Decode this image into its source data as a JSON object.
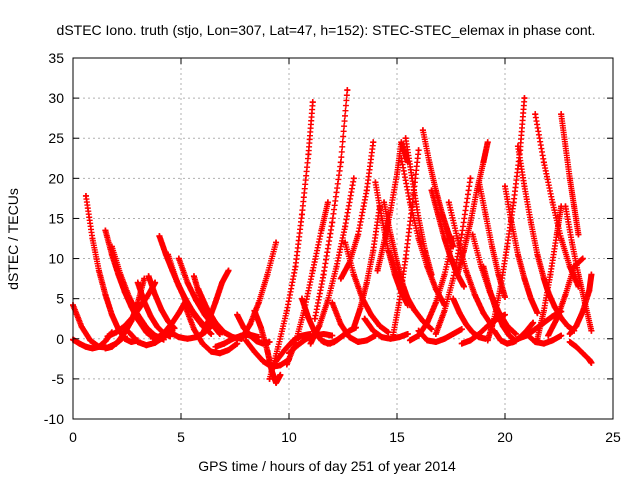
{
  "chart_data": {
    "type": "scatter",
    "title": "dSTEC Iono. truth (stjo, Lon=307, Lat=47, h=152): STEC-STEC_elemax in phase cont.",
    "xlabel": "GPS time / hours of day 251 of year 2014",
    "ylabel": "dSTEC  / TECUs",
    "xlim": [
      0,
      25
    ],
    "ylim": [
      -10,
      35
    ],
    "xticks": [
      0,
      5,
      10,
      15,
      20,
      25
    ],
    "yticks": [
      -10,
      -5,
      0,
      5,
      10,
      15,
      20,
      25,
      30,
      35
    ],
    "grid": true,
    "legend": "none",
    "marker": "+",
    "color": "#ff0000",
    "series": [
      {
        "x": [
          0.0,
          0.4,
          0.8,
          1.2,
          1.6,
          2.0,
          2.4
        ],
        "y": [
          4.2,
          1.5,
          -0.2,
          -1.0,
          -1.1,
          -0.6,
          0.3
        ]
      },
      {
        "x": [
          0.0,
          0.3,
          0.6,
          0.9,
          1.2,
          1.5,
          1.8
        ],
        "y": [
          -0.1,
          -0.6,
          -1.0,
          -1.2,
          -1.0,
          -0.3,
          0.8
        ]
      },
      {
        "x": [
          0.6,
          0.9,
          1.2,
          1.5,
          1.8,
          2.1,
          2.4,
          2.7,
          3.0
        ],
        "y": [
          17.8,
          12.5,
          8.5,
          5.5,
          3.0,
          1.2,
          0.0,
          -0.4,
          -0.2
        ]
      },
      {
        "x": [
          1.5,
          1.8,
          2.1,
          2.4,
          2.7,
          3.0,
          3.3
        ],
        "y": [
          -1.2,
          -1.0,
          -0.3,
          0.8,
          2.2,
          4.5,
          7.5
        ]
      },
      {
        "x": [
          1.5,
          1.8,
          2.1,
          2.4,
          2.7,
          3.0,
          3.4,
          3.8
        ],
        "y": [
          13.5,
          10.5,
          8.0,
          5.8,
          4.0,
          2.4,
          0.8,
          0.0
        ]
      },
      {
        "x": [
          1.8,
          2.2,
          2.6,
          3.0,
          3.4,
          3.8,
          4.2
        ],
        "y": [
          11.5,
          8.0,
          5.2,
          3.0,
          1.4,
          0.4,
          -0.1
        ]
      },
      {
        "x": [
          1.6,
          2.0,
          2.4,
          2.8,
          3.2,
          3.6,
          3.8
        ],
        "y": [
          0.3,
          0.8,
          1.6,
          2.8,
          4.3,
          6.0,
          7.0
        ]
      },
      {
        "x": [
          2.6,
          3.0,
          3.4,
          3.8,
          4.2,
          4.6
        ],
        "y": [
          0.8,
          -0.4,
          -0.8,
          -0.5,
          0.2,
          1.0
        ]
      },
      {
        "x": [
          3.0,
          3.3,
          3.6,
          3.9,
          4.2,
          4.5
        ],
        "y": [
          7.0,
          4.6,
          2.8,
          1.5,
          0.7,
          0.3
        ]
      },
      {
        "x": [
          3.5,
          3.8,
          4.1,
          4.4,
          4.7
        ],
        "y": [
          7.8,
          5.5,
          3.6,
          2.2,
          1.3
        ]
      },
      {
        "x": [
          3.7,
          4.0,
          4.3,
          4.6,
          4.9,
          5.2
        ],
        "y": [
          0.0,
          0.3,
          1.0,
          2.0,
          3.2,
          4.6
        ]
      },
      {
        "x": [
          4.0,
          4.3,
          4.6,
          4.9,
          5.2,
          5.5,
          5.8,
          6.1
        ],
        "y": [
          12.8,
          10.5,
          8.5,
          6.6,
          5.0,
          3.6,
          2.5,
          1.6
        ]
      },
      {
        "x": [
          4.4,
          4.8,
          5.2,
          5.6,
          6.0,
          6.4
        ],
        "y": [
          10.5,
          7.2,
          4.8,
          3.0,
          1.6,
          0.6
        ]
      },
      {
        "x": [
          4.9,
          5.3,
          5.7,
          6.1,
          6.5,
          6.9
        ],
        "y": [
          10.0,
          7.0,
          4.8,
          3.0,
          1.6,
          0.8
        ]
      },
      {
        "x": [
          4.5,
          4.9,
          5.3,
          5.7,
          6.1,
          6.5
        ],
        "y": [
          0.8,
          0.2,
          0.0,
          0.2,
          0.8,
          1.8
        ]
      },
      {
        "x": [
          5.2,
          5.6,
          6.0,
          6.4,
          6.8,
          7.2,
          7.6
        ],
        "y": [
          4.0,
          1.2,
          -0.6,
          -1.6,
          -1.8,
          -1.4,
          -0.6
        ]
      },
      {
        "x": [
          5.6,
          5.9,
          6.2,
          6.5,
          6.8
        ],
        "y": [
          7.8,
          5.0,
          3.0,
          1.6,
          0.6
        ]
      },
      {
        "x": [
          5.8,
          6.2,
          6.6,
          7.0,
          7.4,
          7.8
        ],
        "y": [
          6.2,
          3.8,
          2.0,
          0.8,
          0.2,
          0.0
        ]
      },
      {
        "x": [
          6.0,
          6.3,
          6.6,
          6.9,
          7.2
        ],
        "y": [
          0.6,
          2.4,
          4.6,
          7.0,
          8.5
        ]
      },
      {
        "x": [
          6.6,
          7.0,
          7.4,
          7.8,
          8.2,
          8.6
        ],
        "y": [
          -1.0,
          -0.6,
          0.0,
          0.4,
          0.5,
          0.2
        ]
      },
      {
        "x": [
          7.6,
          7.9,
          8.2,
          8.5,
          8.8,
          9.1
        ],
        "y": [
          3.0,
          1.4,
          0.4,
          -0.3,
          -0.6,
          -0.4
        ]
      },
      {
        "x": [
          7.8,
          8.2,
          8.6,
          9.0,
          9.4
        ],
        "y": [
          0.0,
          1.8,
          4.5,
          8.0,
          12.0
        ]
      },
      {
        "x": [
          8.0,
          8.4,
          8.8,
          9.2,
          9.6,
          10.0
        ],
        "y": [
          -0.2,
          -1.6,
          -2.8,
          -3.5,
          -3.3,
          -2.6
        ]
      },
      {
        "x": [
          8.4,
          8.7,
          9.0,
          9.2,
          9.4,
          9.6
        ],
        "y": [
          3.5,
          1.4,
          -1.5,
          -4.0,
          -5.5,
          -4.5
        ]
      },
      {
        "x": [
          9.1,
          9.5,
          9.9,
          10.3,
          10.6,
          10.9,
          11.1
        ],
        "y": [
          -5.0,
          -1.0,
          3.5,
          9.0,
          15.5,
          23.0,
          29.5
        ]
      },
      {
        "x": [
          9.4,
          9.8,
          10.2,
          10.6,
          11.0
        ],
        "y": [
          -2.8,
          -1.4,
          -0.2,
          0.4,
          0.6
        ]
      },
      {
        "x": [
          9.9,
          10.3,
          10.7,
          11.1,
          11.5,
          11.8
        ],
        "y": [
          -3.2,
          -0.5,
          3.5,
          8.5,
          13.5,
          17.0
        ]
      },
      {
        "x": [
          10.0,
          10.4,
          10.8,
          11.2,
          11.6,
          12.0
        ],
        "y": [
          -1.8,
          -0.8,
          0.0,
          0.4,
          0.6,
          0.4
        ]
      },
      {
        "x": [
          10.6,
          10.9,
          11.2,
          11.5,
          11.8,
          12.1
        ],
        "y": [
          5.0,
          2.6,
          0.8,
          -0.2,
          -0.6,
          -0.4
        ]
      },
      {
        "x": [
          11.0,
          11.4,
          11.8,
          12.2,
          12.6,
          13.0
        ],
        "y": [
          -0.6,
          1.6,
          4.8,
          9.0,
          14.0,
          20.0
        ]
      },
      {
        "x": [
          11.2,
          11.6,
          12.0,
          12.4,
          12.7
        ],
        "y": [
          2.5,
          8.0,
          14.5,
          22.0,
          31.0
        ]
      },
      {
        "x": [
          11.6,
          11.9,
          12.2,
          12.5,
          12.8,
          13.1
        ],
        "y": [
          -0.4,
          -0.6,
          -0.2,
          0.4,
          1.0,
          1.4
        ]
      },
      {
        "x": [
          12.0,
          12.4,
          12.8,
          13.2,
          13.6,
          14.0
        ],
        "y": [
          4.5,
          1.8,
          0.2,
          -0.4,
          -0.2,
          0.4
        ]
      },
      {
        "x": [
          12.4,
          12.8,
          13.2,
          13.6,
          13.9
        ],
        "y": [
          7.5,
          9.5,
          13.0,
          18.5,
          24.5
        ]
      },
      {
        "x": [
          12.6,
          13.0,
          13.4,
          13.8,
          14.2,
          14.6
        ],
        "y": [
          12.0,
          8.0,
          5.0,
          3.0,
          1.6,
          0.8
        ]
      },
      {
        "x": [
          13.0,
          13.3,
          13.6,
          13.9,
          14.2
        ],
        "y": [
          1.4,
          3.8,
          7.0,
          11.0,
          16.5
        ]
      },
      {
        "x": [
          13.5,
          13.9,
          14.3,
          14.7,
          15.1,
          15.5
        ],
        "y": [
          2.5,
          1.0,
          0.2,
          0.0,
          0.2,
          0.6
        ]
      },
      {
        "x": [
          14.0,
          14.3,
          14.6,
          14.9,
          15.2,
          15.5
        ],
        "y": [
          19.5,
          15.0,
          11.0,
          8.0,
          5.8,
          4.2
        ]
      },
      {
        "x": [
          14.1,
          14.4,
          14.7,
          15.0,
          15.2,
          15.5
        ],
        "y": [
          8.5,
          12.0,
          16.0,
          20.5,
          24.5,
          22.0
        ]
      },
      {
        "x": [
          14.4,
          14.7,
          15.0,
          15.3,
          15.6
        ],
        "y": [
          17.0,
          13.0,
          9.5,
          6.5,
          4.2
        ]
      },
      {
        "x": [
          14.6,
          15.0,
          15.4,
          15.8,
          16.2,
          16.6
        ],
        "y": [
          11.0,
          8.0,
          5.5,
          3.6,
          2.2,
          1.2
        ]
      },
      {
        "x": [
          14.8,
          15.1,
          15.4,
          15.7,
          16.0
        ],
        "y": [
          0.2,
          4.5,
          10.0,
          16.5,
          23.5
        ]
      },
      {
        "x": [
          15.2,
          15.6,
          16.0,
          16.4,
          16.8,
          17.2
        ],
        "y": [
          22.5,
          17.0,
          12.5,
          9.0,
          6.2,
          4.2
        ]
      },
      {
        "x": [
          15.4,
          15.7,
          16.0,
          16.3,
          16.6
        ],
        "y": [
          25.0,
          20.0,
          15.0,
          11.0,
          8.0
        ]
      },
      {
        "x": [
          15.6,
          16.0,
          16.4,
          16.8,
          17.2,
          17.6
        ],
        "y": [
          -0.2,
          0.4,
          2.0,
          4.5,
          8.0,
          12.5
        ]
      },
      {
        "x": [
          16.0,
          16.4,
          16.8,
          17.2,
          17.6,
          18.0
        ],
        "y": [
          1.0,
          -0.2,
          -0.4,
          0.0,
          0.6,
          1.2
        ]
      },
      {
        "x": [
          16.2,
          16.5,
          16.8,
          17.1,
          17.4,
          17.6
        ],
        "y": [
          26.0,
          22.0,
          18.5,
          15.5,
          13.0,
          11.5
        ]
      },
      {
        "x": [
          16.6,
          16.9,
          17.2,
          17.5,
          17.8,
          18.1
        ],
        "y": [
          18.5,
          15.5,
          12.5,
          10.0,
          8.0,
          6.5
        ]
      },
      {
        "x": [
          16.8,
          17.2,
          17.6,
          18.0,
          18.4
        ],
        "y": [
          0.6,
          3.5,
          7.5,
          13.0,
          20.0
        ]
      },
      {
        "x": [
          17.4,
          17.8,
          18.2,
          18.6,
          19.0,
          19.4
        ],
        "y": [
          17.0,
          12.5,
          8.5,
          5.5,
          3.2,
          1.6
        ]
      },
      {
        "x": [
          17.6,
          17.9,
          18.2,
          18.5,
          18.8,
          19.1
        ],
        "y": [
          5.0,
          3.2,
          1.8,
          0.8,
          0.2,
          0.0
        ]
      },
      {
        "x": [
          17.8,
          18.1,
          18.4,
          18.7,
          19.0,
          19.2
        ],
        "y": [
          8.0,
          11.0,
          14.5,
          18.5,
          22.0,
          24.5
        ]
      },
      {
        "x": [
          18.0,
          18.4,
          18.8,
          19.2,
          19.6,
          20.0
        ],
        "y": [
          -0.6,
          -0.2,
          0.6,
          1.6,
          2.4,
          3.0
        ]
      },
      {
        "x": [
          18.5,
          18.9,
          19.3,
          19.7,
          20.1,
          20.5
        ],
        "y": [
          13.0,
          9.0,
          5.8,
          3.4,
          1.6,
          0.6
        ]
      },
      {
        "x": [
          18.8,
          19.1,
          19.4,
          19.7,
          20.0
        ],
        "y": [
          19.5,
          15.5,
          11.5,
          8.0,
          5.2
        ]
      },
      {
        "x": [
          19.0,
          19.3,
          19.6,
          19.9,
          20.2,
          20.5
        ],
        "y": [
          9.0,
          6.0,
          3.5,
          1.6,
          0.4,
          -0.3
        ]
      },
      {
        "x": [
          19.2,
          19.5,
          19.8,
          20.1,
          20.4,
          20.7,
          20.9
        ],
        "y": [
          -0.2,
          2.5,
          6.5,
          11.5,
          17.0,
          23.5,
          30.0
        ]
      },
      {
        "x": [
          19.5,
          19.8,
          20.1,
          20.4,
          20.7,
          21.0,
          21.3
        ],
        "y": [
          1.0,
          -0.2,
          -0.6,
          -0.4,
          0.2,
          1.0,
          2.0
        ]
      },
      {
        "x": [
          20.0,
          20.3,
          20.6,
          20.9,
          21.2,
          21.5
        ],
        "y": [
          19.0,
          14.5,
          10.5,
          7.5,
          5.0,
          3.2
        ]
      },
      {
        "x": [
          20.6,
          20.9,
          21.2,
          21.5,
          21.8,
          22.0
        ],
        "y": [
          24.0,
          19.0,
          14.5,
          10.5,
          7.5,
          5.8
        ]
      },
      {
        "x": [
          20.6,
          21.0,
          21.4,
          21.8,
          22.2,
          22.6
        ],
        "y": [
          0.0,
          0.4,
          1.2,
          2.0,
          2.8,
          3.4
        ]
      },
      {
        "x": [
          21.0,
          21.4,
          21.8,
          22.2,
          22.6
        ],
        "y": [
          0.6,
          -0.4,
          -0.6,
          -0.2,
          0.4
        ]
      },
      {
        "x": [
          21.4,
          21.8,
          22.2,
          22.6,
          23.0,
          23.4
        ],
        "y": [
          28.0,
          22.0,
          17.0,
          12.5,
          9.0,
          6.5
        ]
      },
      {
        "x": [
          21.5,
          21.8,
          22.1,
          22.4,
          22.6
        ],
        "y": [
          0.0,
          3.5,
          8.0,
          13.0,
          16.5
        ]
      },
      {
        "x": [
          22.0,
          22.3,
          22.6,
          22.9,
          23.2
        ],
        "y": [
          5.8,
          4.0,
          2.6,
          1.6,
          1.0
        ]
      },
      {
        "x": [
          22.6,
          22.8,
          23.0,
          23.2,
          23.4
        ],
        "y": [
          28.0,
          24.0,
          20.0,
          16.5,
          13.0
        ]
      },
      {
        "x": [
          22.0,
          22.4,
          22.8,
          23.2,
          23.6
        ],
        "y": [
          0.4,
          2.5,
          5.5,
          9.0,
          10.0
        ]
      },
      {
        "x": [
          22.8,
          23.1,
          23.4,
          23.7,
          24.0
        ],
        "y": [
          16.5,
          12.0,
          8.0,
          4.5,
          1.0
        ]
      },
      {
        "x": [
          23.0,
          23.3,
          23.6,
          23.9,
          24.0
        ],
        "y": [
          0.6,
          1.6,
          3.4,
          6.0,
          8.0
        ]
      },
      {
        "x": [
          23.0,
          23.3,
          23.6,
          23.9,
          24.0
        ],
        "y": [
          -0.4,
          -1.0,
          -1.8,
          -2.6,
          -3.0
        ]
      }
    ]
  }
}
